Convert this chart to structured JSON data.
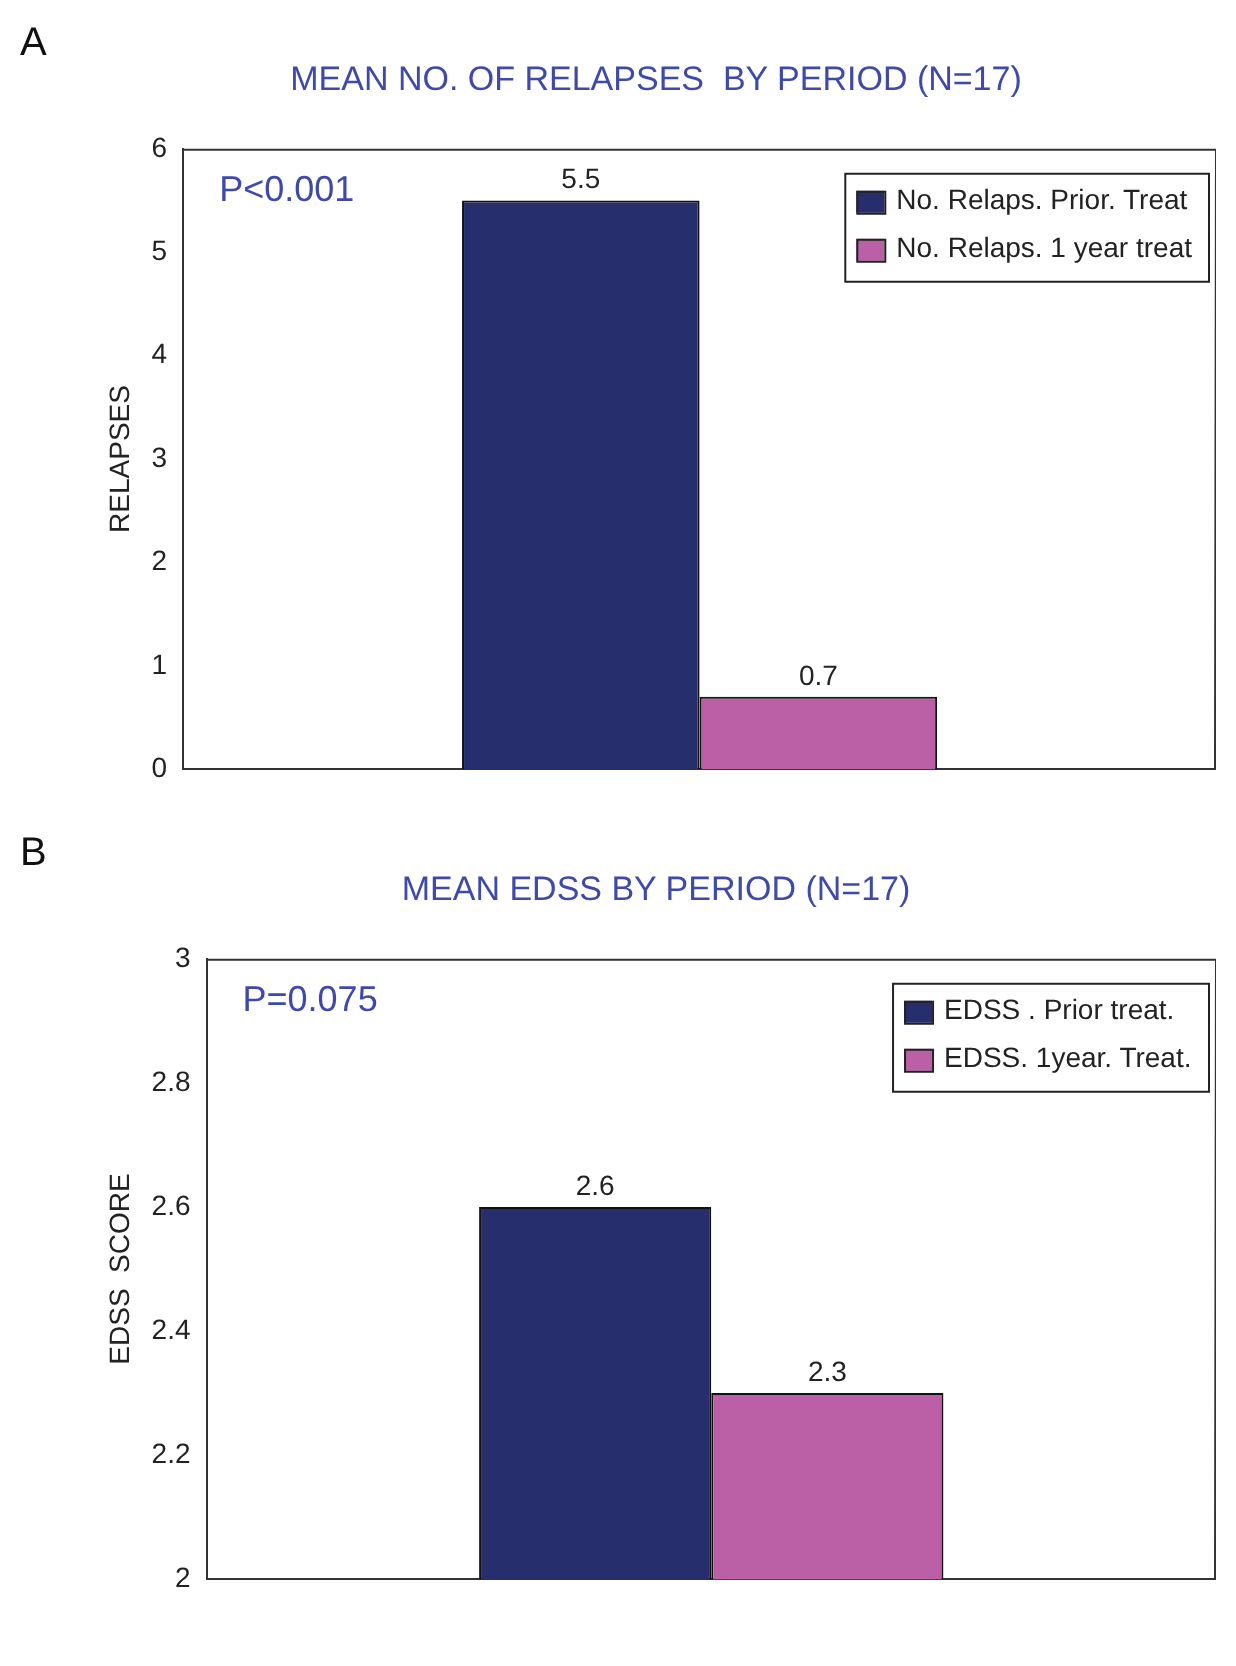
{
  "chart_data": [
    {
      "type": "bar",
      "title": "MEAN NO. OF RELAPSES  BY PERIOD (N=17)",
      "ylabel": "RELAPSES",
      "categories": [
        null
      ],
      "series": [
        {
          "name": "No. Relaps. Prior. Treat",
          "color": "#262e6e",
          "values": [
            5.5
          ]
        },
        {
          "name": "No. Relaps. 1 year treat",
          "color": "#bb5fa6",
          "values": [
            0.7
          ]
        }
      ],
      "ylim": [
        0,
        6
      ],
      "yticks": [
        0,
        1,
        2,
        3,
        4,
        5,
        6
      ],
      "grid": false,
      "legend": "top right",
      "data_labels": true,
      "annotations": [
        "A",
        "P<0.001"
      ]
    },
    {
      "type": "bar",
      "title": "MEAN EDSS BY PERIOD (N=17)",
      "ylabel": "EDSS  SCORE",
      "categories": [
        null
      ],
      "series": [
        {
          "name": "EDSS . Prior treat.",
          "color": "#262e6e",
          "values": [
            2.6
          ]
        },
        {
          "name": "EDSS. 1year. Treat.",
          "color": "#bb5fa6",
          "values": [
            2.3
          ]
        }
      ],
      "ylim": [
        2,
        3
      ],
      "yticks": [
        2,
        2.2,
        2.4,
        2.6,
        2.8,
        3
      ],
      "grid": false,
      "legend": "top right",
      "data_labels": true,
      "annotations": [
        "B",
        "P=0.075"
      ]
    }
  ]
}
